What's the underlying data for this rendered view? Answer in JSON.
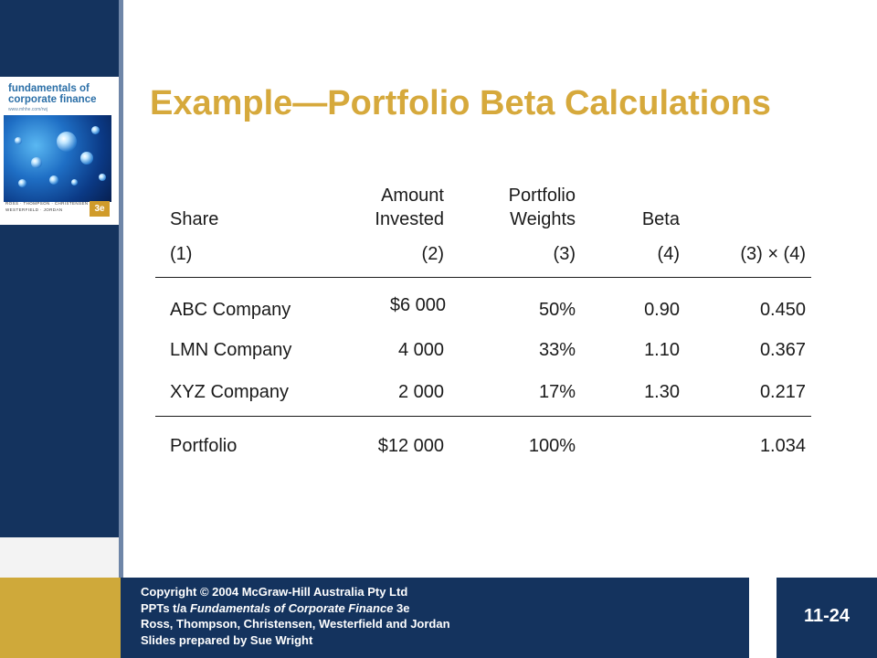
{
  "slide": {
    "title": "Example—Portfolio Beta Calculations",
    "page_number": "11-24"
  },
  "cover": {
    "title_line1": "fundamentals of",
    "title_line2": "corporate finance",
    "subtitle": "www.mhhe.com/rwj",
    "authors_line1": "ROSS · THOMPSON · CHRISTENSEN",
    "authors_line2": "WESTERFIELD · JORDAN",
    "edition": "3e"
  },
  "table": {
    "headers": {
      "share": "Share",
      "amount_line1": "Amount",
      "amount_line2": "Invested",
      "weights_line1": "Portfolio",
      "weights_line2": "Weights",
      "beta": "Beta"
    },
    "column_numbers": [
      "(1)",
      "(2)",
      "(3)",
      "(4)",
      "(3) × (4)"
    ],
    "rows": [
      {
        "share": "ABC Company",
        "amount": "$6 000",
        "weight": "50%",
        "beta": "0.90",
        "product": "0.450"
      },
      {
        "share": "LMN Company",
        "amount": "4 000",
        "weight": "33%",
        "beta": "1.10",
        "product": "0.367"
      },
      {
        "share": "XYZ Company",
        "amount": "2 000",
        "weight": "17%",
        "beta": "1.30",
        "product": "0.217"
      }
    ],
    "total": {
      "share": "Portfolio",
      "amount": "$12 000",
      "weight": "100%",
      "beta": "",
      "product": "1.034"
    }
  },
  "footer": {
    "line1": "Copyright © 2004 McGraw-Hill Australia Pty Ltd",
    "line2_prefix": "PPTs t/a ",
    "line2_book": "Fundamentals of Corporate Finance",
    "line2_suffix": " 3e",
    "line3": "Ross, Thompson, Christensen, Westerfield and Jordan",
    "line4": "Slides prepared by Sue Wright"
  },
  "colors": {
    "navy": "#14335e",
    "gold": "#cfa93a",
    "title_gold": "#d6a93c"
  }
}
